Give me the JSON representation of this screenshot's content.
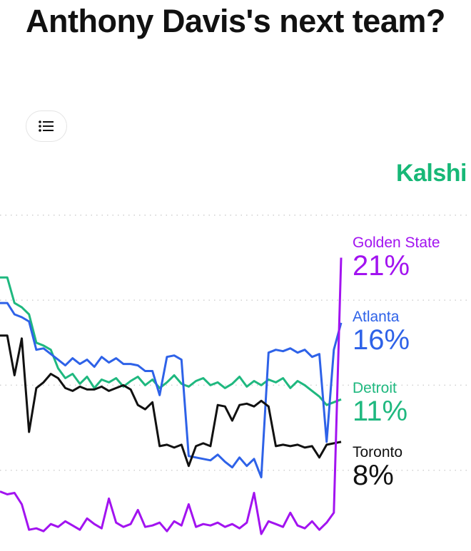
{
  "header": {
    "title": "Anthony Davis's next team?",
    "toc_icon": "list-icon"
  },
  "brand": {
    "name": "Kalshi",
    "color": "#17b877"
  },
  "chart_data": {
    "type": "line",
    "title": "",
    "xlabel": "",
    "ylabel": "",
    "ylim": [
      0.3,
      25.1
    ],
    "grid": true,
    "legend": "right, end-of-line labels",
    "series": [
      {
        "name": "Golden State",
        "label": "21%",
        "color": "#a213f0",
        "values": [
          4.5,
          4.3,
          4.4,
          3.6,
          1.8,
          1.9,
          1.7,
          2.2,
          2.0,
          2.4,
          2.1,
          1.8,
          2.6,
          2.2,
          1.9,
          4.0,
          2.3,
          2.0,
          2.2,
          3.2,
          2.0,
          2.1,
          2.3,
          1.7,
          2.4,
          2.1,
          3.6,
          2.0,
          2.2,
          2.1,
          2.3,
          2.0,
          2.2,
          1.9,
          2.3,
          4.4,
          1.5,
          2.4,
          2.2,
          2.0,
          3.0,
          2.1,
          1.9,
          2.4,
          1.8,
          2.3,
          3.0,
          21.0
        ]
      },
      {
        "name": "Atlanta",
        "label": "16%",
        "color": "#2e62e8",
        "values": [
          17.8,
          17.8,
          17.0,
          16.8,
          16.5,
          14.5,
          14.6,
          14.2,
          13.8,
          13.4,
          13.9,
          13.5,
          13.8,
          13.3,
          14.0,
          13.6,
          13.9,
          13.5,
          13.5,
          13.4,
          13.0,
          13.0,
          11.3,
          14.0,
          14.1,
          13.8,
          7.0,
          6.9,
          6.8,
          6.7,
          7.1,
          6.6,
          6.2,
          6.9,
          6.3,
          6.8,
          5.5,
          14.3,
          14.5,
          14.4,
          14.6,
          14.3,
          14.5,
          14.0,
          14.2,
          8.0,
          14.5,
          16.4
        ]
      },
      {
        "name": "Detroit",
        "label": "11%",
        "color": "#1fb87f",
        "values": [
          19.6,
          19.6,
          17.8,
          17.5,
          17.0,
          15.0,
          14.8,
          14.5,
          13.2,
          12.5,
          12.8,
          12.1,
          12.6,
          11.8,
          12.4,
          12.2,
          12.5,
          11.9,
          12.3,
          12.6,
          12.0,
          12.4,
          11.8,
          12.2,
          12.7,
          12.1,
          11.9,
          12.3,
          12.5,
          12.0,
          12.2,
          11.8,
          12.1,
          12.6,
          11.9,
          12.3,
          12.0,
          12.4,
          12.2,
          12.5,
          11.8,
          12.3,
          12.0,
          11.6,
          11.2,
          10.6,
          10.8,
          11.0
        ]
      },
      {
        "name": "Toronto",
        "label": "8%",
        "color": "#111111",
        "values": [
          15.5,
          15.5,
          12.7,
          15.3,
          8.7,
          11.8,
          12.2,
          12.8,
          12.5,
          11.8,
          11.6,
          11.9,
          11.7,
          11.7,
          11.9,
          11.6,
          11.8,
          12.0,
          11.7,
          10.6,
          10.3,
          10.8,
          7.7,
          7.8,
          7.6,
          7.8,
          6.3,
          7.7,
          7.9,
          7.7,
          10.6,
          10.5,
          9.5,
          10.6,
          10.7,
          10.5,
          10.9,
          10.5,
          7.7,
          7.8,
          7.7,
          7.8,
          7.6,
          7.7,
          6.9,
          7.8,
          7.9,
          8.0
        ]
      }
    ]
  }
}
